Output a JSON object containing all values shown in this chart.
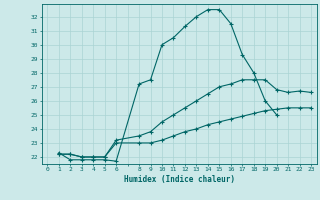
{
  "xlabel": "Humidex (Indice chaleur)",
  "background_color": "#cce9e9",
  "grid_color": "#aad4d4",
  "line_color": "#006666",
  "y_ticks": [
    22,
    23,
    24,
    25,
    26,
    27,
    28,
    29,
    30,
    31,
    32
  ],
  "ylim": [
    21.5,
    32.9
  ],
  "xlim": [
    -0.5,
    23.5
  ],
  "curves": [
    {
      "x": [
        1,
        2,
        3,
        4,
        5,
        6,
        8,
        9,
        10,
        11,
        12,
        13,
        14,
        15,
        16,
        17,
        18,
        19,
        20
      ],
      "y": [
        22.3,
        21.8,
        21.8,
        21.8,
        21.8,
        21.7,
        27.2,
        27.5,
        30.0,
        30.5,
        31.3,
        32.0,
        32.5,
        32.5,
        31.5,
        29.3,
        28.0,
        26.0,
        25.0
      ]
    },
    {
      "x": [
        1,
        2,
        3,
        4,
        5,
        6,
        8,
        9,
        10,
        11,
        12,
        13,
        14,
        15,
        16,
        17,
        18,
        19,
        20,
        21,
        22,
        23
      ],
      "y": [
        22.2,
        22.2,
        22.0,
        22.0,
        22.0,
        23.0,
        23.0,
        23.0,
        23.2,
        23.5,
        23.8,
        24.0,
        24.3,
        24.5,
        24.7,
        24.9,
        25.1,
        25.3,
        25.4,
        25.5,
        25.5,
        25.5
      ]
    },
    {
      "x": [
        1,
        2,
        3,
        4,
        5,
        6,
        8,
        9,
        10,
        11,
        12,
        13,
        14,
        15,
        16,
        17,
        18,
        19,
        20,
        21,
        22,
        23
      ],
      "y": [
        22.2,
        22.2,
        22.0,
        22.0,
        22.0,
        23.2,
        23.5,
        23.8,
        24.5,
        25.0,
        25.5,
        26.0,
        26.5,
        27.0,
        27.2,
        27.5,
        27.5,
        27.5,
        26.8,
        26.6,
        26.7,
        26.6
      ]
    }
  ],
  "xtick_labels": [
    "0",
    "1",
    "2",
    "3",
    "4",
    "5",
    "6",
    "",
    "8",
    "9",
    "10",
    "11",
    "12",
    "13",
    "14",
    "15",
    "16",
    "17",
    "18",
    "19",
    "20",
    "21",
    "22",
    "23"
  ]
}
